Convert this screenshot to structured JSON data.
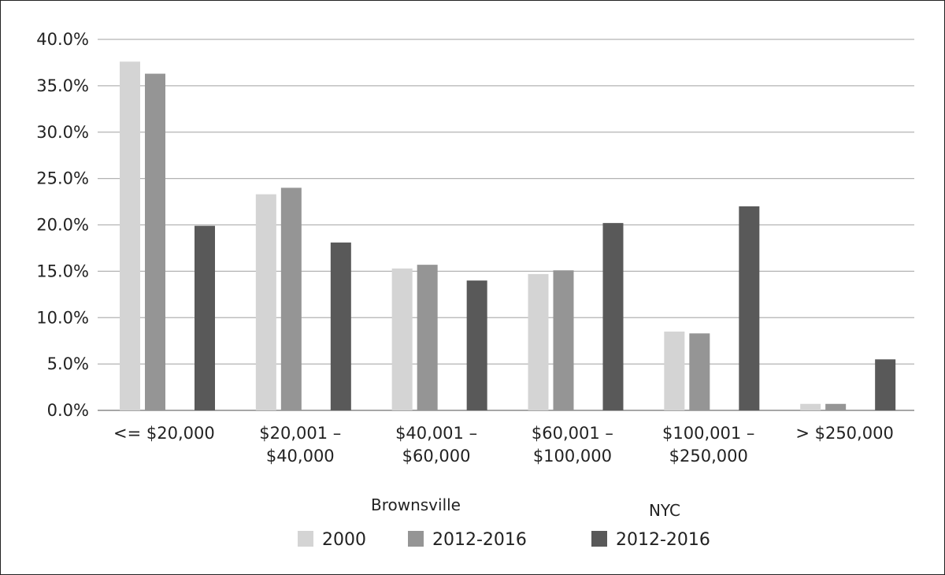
{
  "chart_data": {
    "type": "bar",
    "categories": [
      [
        "<= $20,000"
      ],
      [
        "$20,001 –",
        "$40,000"
      ],
      [
        "$40,001 –",
        "$60,000"
      ],
      [
        "$60,001 –",
        "$100,000"
      ],
      [
        "$100,001 –",
        "$250,000"
      ],
      [
        "> $250,000"
      ]
    ],
    "series": [
      {
        "name": "2000",
        "group": "Brownsville",
        "color": "#d4d4d4",
        "values": [
          37.6,
          23.3,
          15.3,
          14.7,
          8.5,
          0.7
        ]
      },
      {
        "name": "2012-2016",
        "group": "Brownsville",
        "color": "#959595",
        "values": [
          36.3,
          24.0,
          15.7,
          15.1,
          8.3,
          0.7
        ]
      },
      {
        "name": "2012-2016",
        "group": "NYC",
        "color": "#595959",
        "values": [
          19.9,
          18.1,
          14.0,
          20.2,
          22.0,
          5.5
        ]
      }
    ],
    "legend_groups": [
      "Brownsville",
      "NYC"
    ],
    "ylim": [
      0,
      40
    ],
    "yticks": [
      "0.0%",
      "5.0%",
      "10.0%",
      "15.0%",
      "20.0%",
      "25.0%",
      "30.0%",
      "35.0%",
      "40.0%"
    ],
    "grid": true,
    "legend_position": "bottom",
    "title": "",
    "xlabel": "",
    "ylabel": ""
  }
}
